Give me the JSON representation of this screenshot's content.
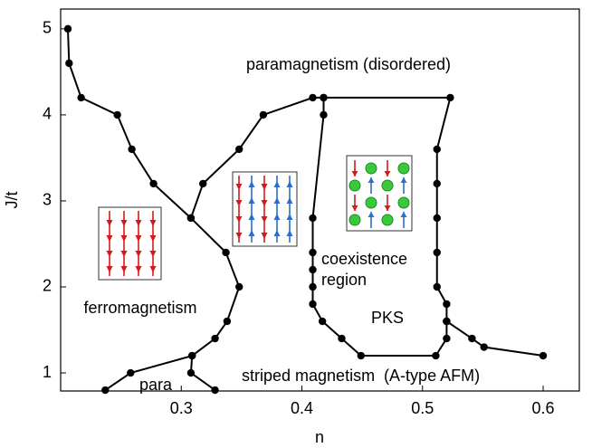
{
  "chart_data": {
    "type": "line",
    "xlabel": "n",
    "ylabel": "J/t",
    "xlim": [
      0.2,
      0.63
    ],
    "ylim": [
      0.79,
      5.23
    ],
    "xticks": [
      0.3,
      0.4,
      0.5,
      0.6
    ],
    "yticks": [
      1,
      2,
      3,
      4,
      5
    ],
    "annotations": [
      "paramagnetism (disordered)",
      "ferromagnetism",
      "coexistence",
      "region",
      "PKS",
      "striped magnetism  (A-type AFM)",
      "para"
    ],
    "series": [
      {
        "color": "#000000",
        "x": [
          0.206,
          0.207,
          0.217,
          0.247,
          0.259,
          0.277,
          0.308,
          0.337,
          0.348,
          0.338,
          0.328,
          0.309,
          0.258,
          0.237
        ],
        "values": [
          5.0,
          4.6,
          4.2,
          4.0,
          3.6,
          3.2,
          2.8,
          2.4,
          2.0,
          1.6,
          1.4,
          1.2,
          1.0,
          0.8
        ]
      },
      {
        "color": "#000000",
        "x": [
          0.309,
          0.308,
          0.328
        ],
        "values": [
          1.2,
          1.0,
          0.8
        ]
      },
      {
        "color": "#000000",
        "x": [
          0.308,
          0.318,
          0.348,
          0.368,
          0.409,
          0.418,
          0.523,
          0.512,
          0.512,
          0.512,
          0.512,
          0.512,
          0.52,
          0.52
        ],
        "values": [
          2.8,
          3.2,
          3.6,
          4.0,
          4.2,
          4.2,
          4.2,
          3.6,
          3.2,
          2.8,
          2.4,
          2.0,
          1.8,
          1.6
        ]
      },
      {
        "color": "#000000",
        "x": [
          0.418,
          0.418,
          0.409,
          0.409,
          0.409,
          0.409,
          0.409,
          0.417,
          0.433,
          0.449,
          0.511,
          0.52,
          0.52
        ],
        "values": [
          4.2,
          4.0,
          2.8,
          2.4,
          2.2,
          2.0,
          1.8,
          1.6,
          1.4,
          1.2,
          1.2,
          1.4,
          1.6
        ]
      },
      {
        "color": "#000000",
        "x": [
          0.52,
          0.541,
          0.551,
          0.6
        ],
        "values": [
          1.6,
          1.4,
          1.3,
          1.2
        ]
      }
    ]
  }
}
